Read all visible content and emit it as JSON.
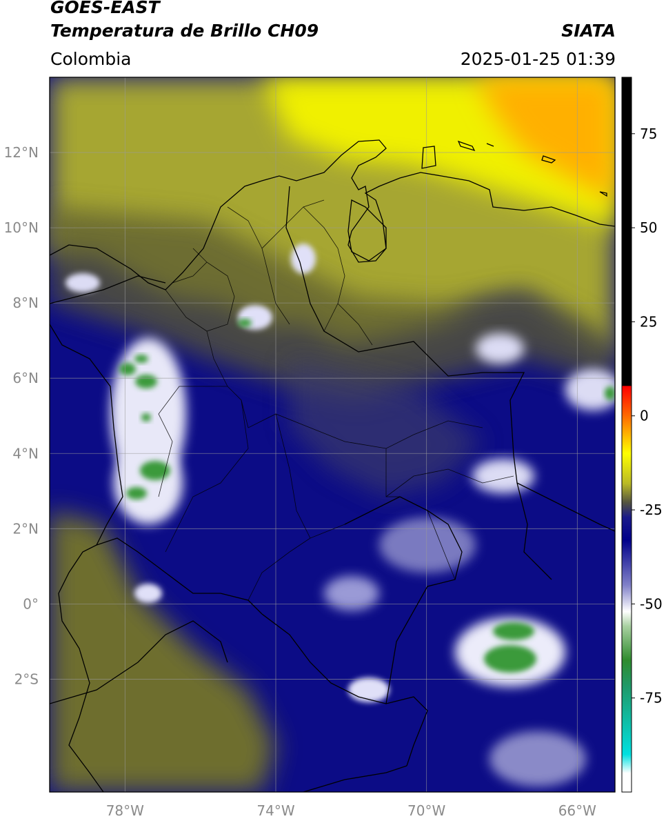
{
  "header": {
    "satellite": "GOES-EAST",
    "product": "Temperatura de Brillo CH09",
    "region": "Colombia",
    "brand": "SIATA",
    "timestamp": "2025-01-25 01:39"
  },
  "map": {
    "lon_range": [
      -80.0,
      -65.0
    ],
    "lat_range": [
      -5.0,
      14.0
    ],
    "lat_ticks": [
      {
        "value": 12,
        "label": "12°N"
      },
      {
        "value": 10,
        "label": "10°N"
      },
      {
        "value": 8,
        "label": "8°N"
      },
      {
        "value": 6,
        "label": "6°N"
      },
      {
        "value": 4,
        "label": "4°N"
      },
      {
        "value": 2,
        "label": "2°N"
      },
      {
        "value": 0,
        "label": "0°"
      },
      {
        "value": -2,
        "label": "2°S"
      }
    ],
    "lon_ticks": [
      {
        "value": -78,
        "label": "78°W"
      },
      {
        "value": -74,
        "label": "74°W"
      },
      {
        "value": -70,
        "label": "70°W"
      },
      {
        "value": -66,
        "label": "66°W"
      }
    ],
    "grid": true
  },
  "colorbar": {
    "range": [
      -100,
      90
    ],
    "ticks": [
      {
        "value": 75,
        "label": "75"
      },
      {
        "value": 50,
        "label": "50"
      },
      {
        "value": 25,
        "label": "25"
      },
      {
        "value": 0,
        "label": "0"
      },
      {
        "value": -25,
        "label": "-25"
      },
      {
        "value": -50,
        "label": "-50"
      },
      {
        "value": -75,
        "label": "-75"
      }
    ],
    "stops": [
      {
        "value": 90,
        "color": "#000000"
      },
      {
        "value": 8,
        "color": "#000000"
      },
      {
        "value": 7.9,
        "color": "#ff0000"
      },
      {
        "value": 0,
        "color": "#ff6a00"
      },
      {
        "value": -10,
        "color": "#ffff00"
      },
      {
        "value": -18,
        "color": "#b9b925"
      },
      {
        "value": -23,
        "color": "#555540"
      },
      {
        "value": -27,
        "color": "#1a1a8a"
      },
      {
        "value": -33,
        "color": "#00008a"
      },
      {
        "value": -45,
        "color": "#8080c8"
      },
      {
        "value": -52,
        "color": "#ffffff"
      },
      {
        "value": -56,
        "color": "#a8d0a0"
      },
      {
        "value": -65,
        "color": "#2e8b2e"
      },
      {
        "value": -72,
        "color": "#1f9a6a"
      },
      {
        "value": -90,
        "color": "#00e0e0"
      },
      {
        "value": -95,
        "color": "#ffffff"
      },
      {
        "value": -100,
        "color": "#ffffff"
      }
    ]
  }
}
